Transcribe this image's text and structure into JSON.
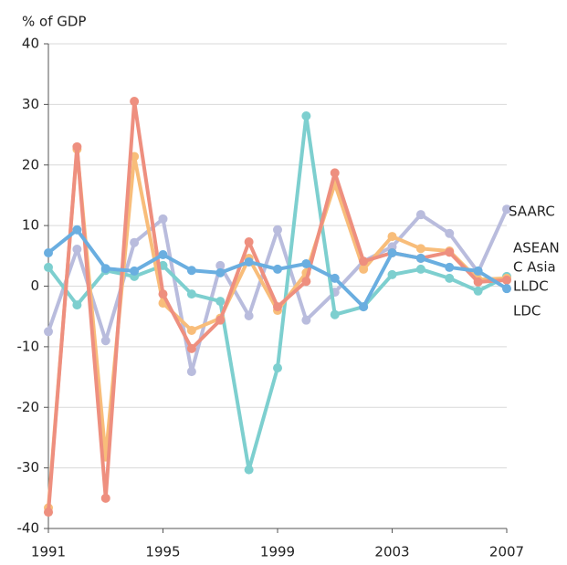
{
  "chart_data": {
    "type": "line",
    "ylabel": "% of GDP",
    "x": [
      1991,
      1992,
      1993,
      1994,
      1995,
      1996,
      1997,
      1998,
      1999,
      2000,
      2001,
      2002,
      2003,
      2004,
      2005,
      2006,
      2007
    ],
    "xlim": [
      1991,
      2007
    ],
    "xticks": [
      1991,
      1995,
      1999,
      2003,
      2007
    ],
    "ylim": [
      -40,
      40
    ],
    "yticks": [
      -40,
      -30,
      -20,
      -10,
      0,
      10,
      20,
      30,
      40
    ],
    "grid": true,
    "series": [
      {
        "name": "SAARC",
        "color": "#b9bcdd",
        "values": [
          -7.5,
          6.1,
          -9.0,
          7.2,
          11.1,
          -14.1,
          3.4,
          -4.9,
          9.3,
          -5.6,
          -1.0,
          4.1,
          6.5,
          11.8,
          8.7,
          2.3,
          12.7
        ]
      },
      {
        "name": "ASEAN",
        "color": "#7dcfcf",
        "values": [
          3.1,
          -3.1,
          2.6,
          1.6,
          3.4,
          -1.3,
          -2.5,
          -30.3,
          -13.5,
          28.1,
          -4.7,
          -3.4,
          1.9,
          2.8,
          1.3,
          -0.8,
          1.6
        ]
      },
      {
        "name": "C Asia",
        "color": "#f8bd7a",
        "values": [
          -36.6,
          22.6,
          -28.2,
          21.4,
          -2.8,
          -7.3,
          -5.3,
          4.6,
          -4.0,
          2.2,
          16.9,
          2.8,
          8.2,
          6.2,
          5.8,
          1.1,
          1.3
        ]
      },
      {
        "name": "LLDC",
        "color": "#ee8f7f",
        "values": [
          -37.3,
          23.0,
          -35.0,
          30.5,
          -1.3,
          -10.3,
          -5.6,
          7.3,
          -3.4,
          0.8,
          18.7,
          4.1,
          5.5,
          4.6,
          5.6,
          0.7,
          1.0
        ]
      },
      {
        "name": "LDC",
        "color": "#6aaee0",
        "values": [
          5.5,
          9.3,
          2.9,
          2.5,
          5.2,
          2.6,
          2.2,
          4.0,
          2.8,
          3.7,
          1.3,
          -3.4,
          5.5,
          4.6,
          3.1,
          2.5,
          -0.4
        ]
      }
    ]
  }
}
